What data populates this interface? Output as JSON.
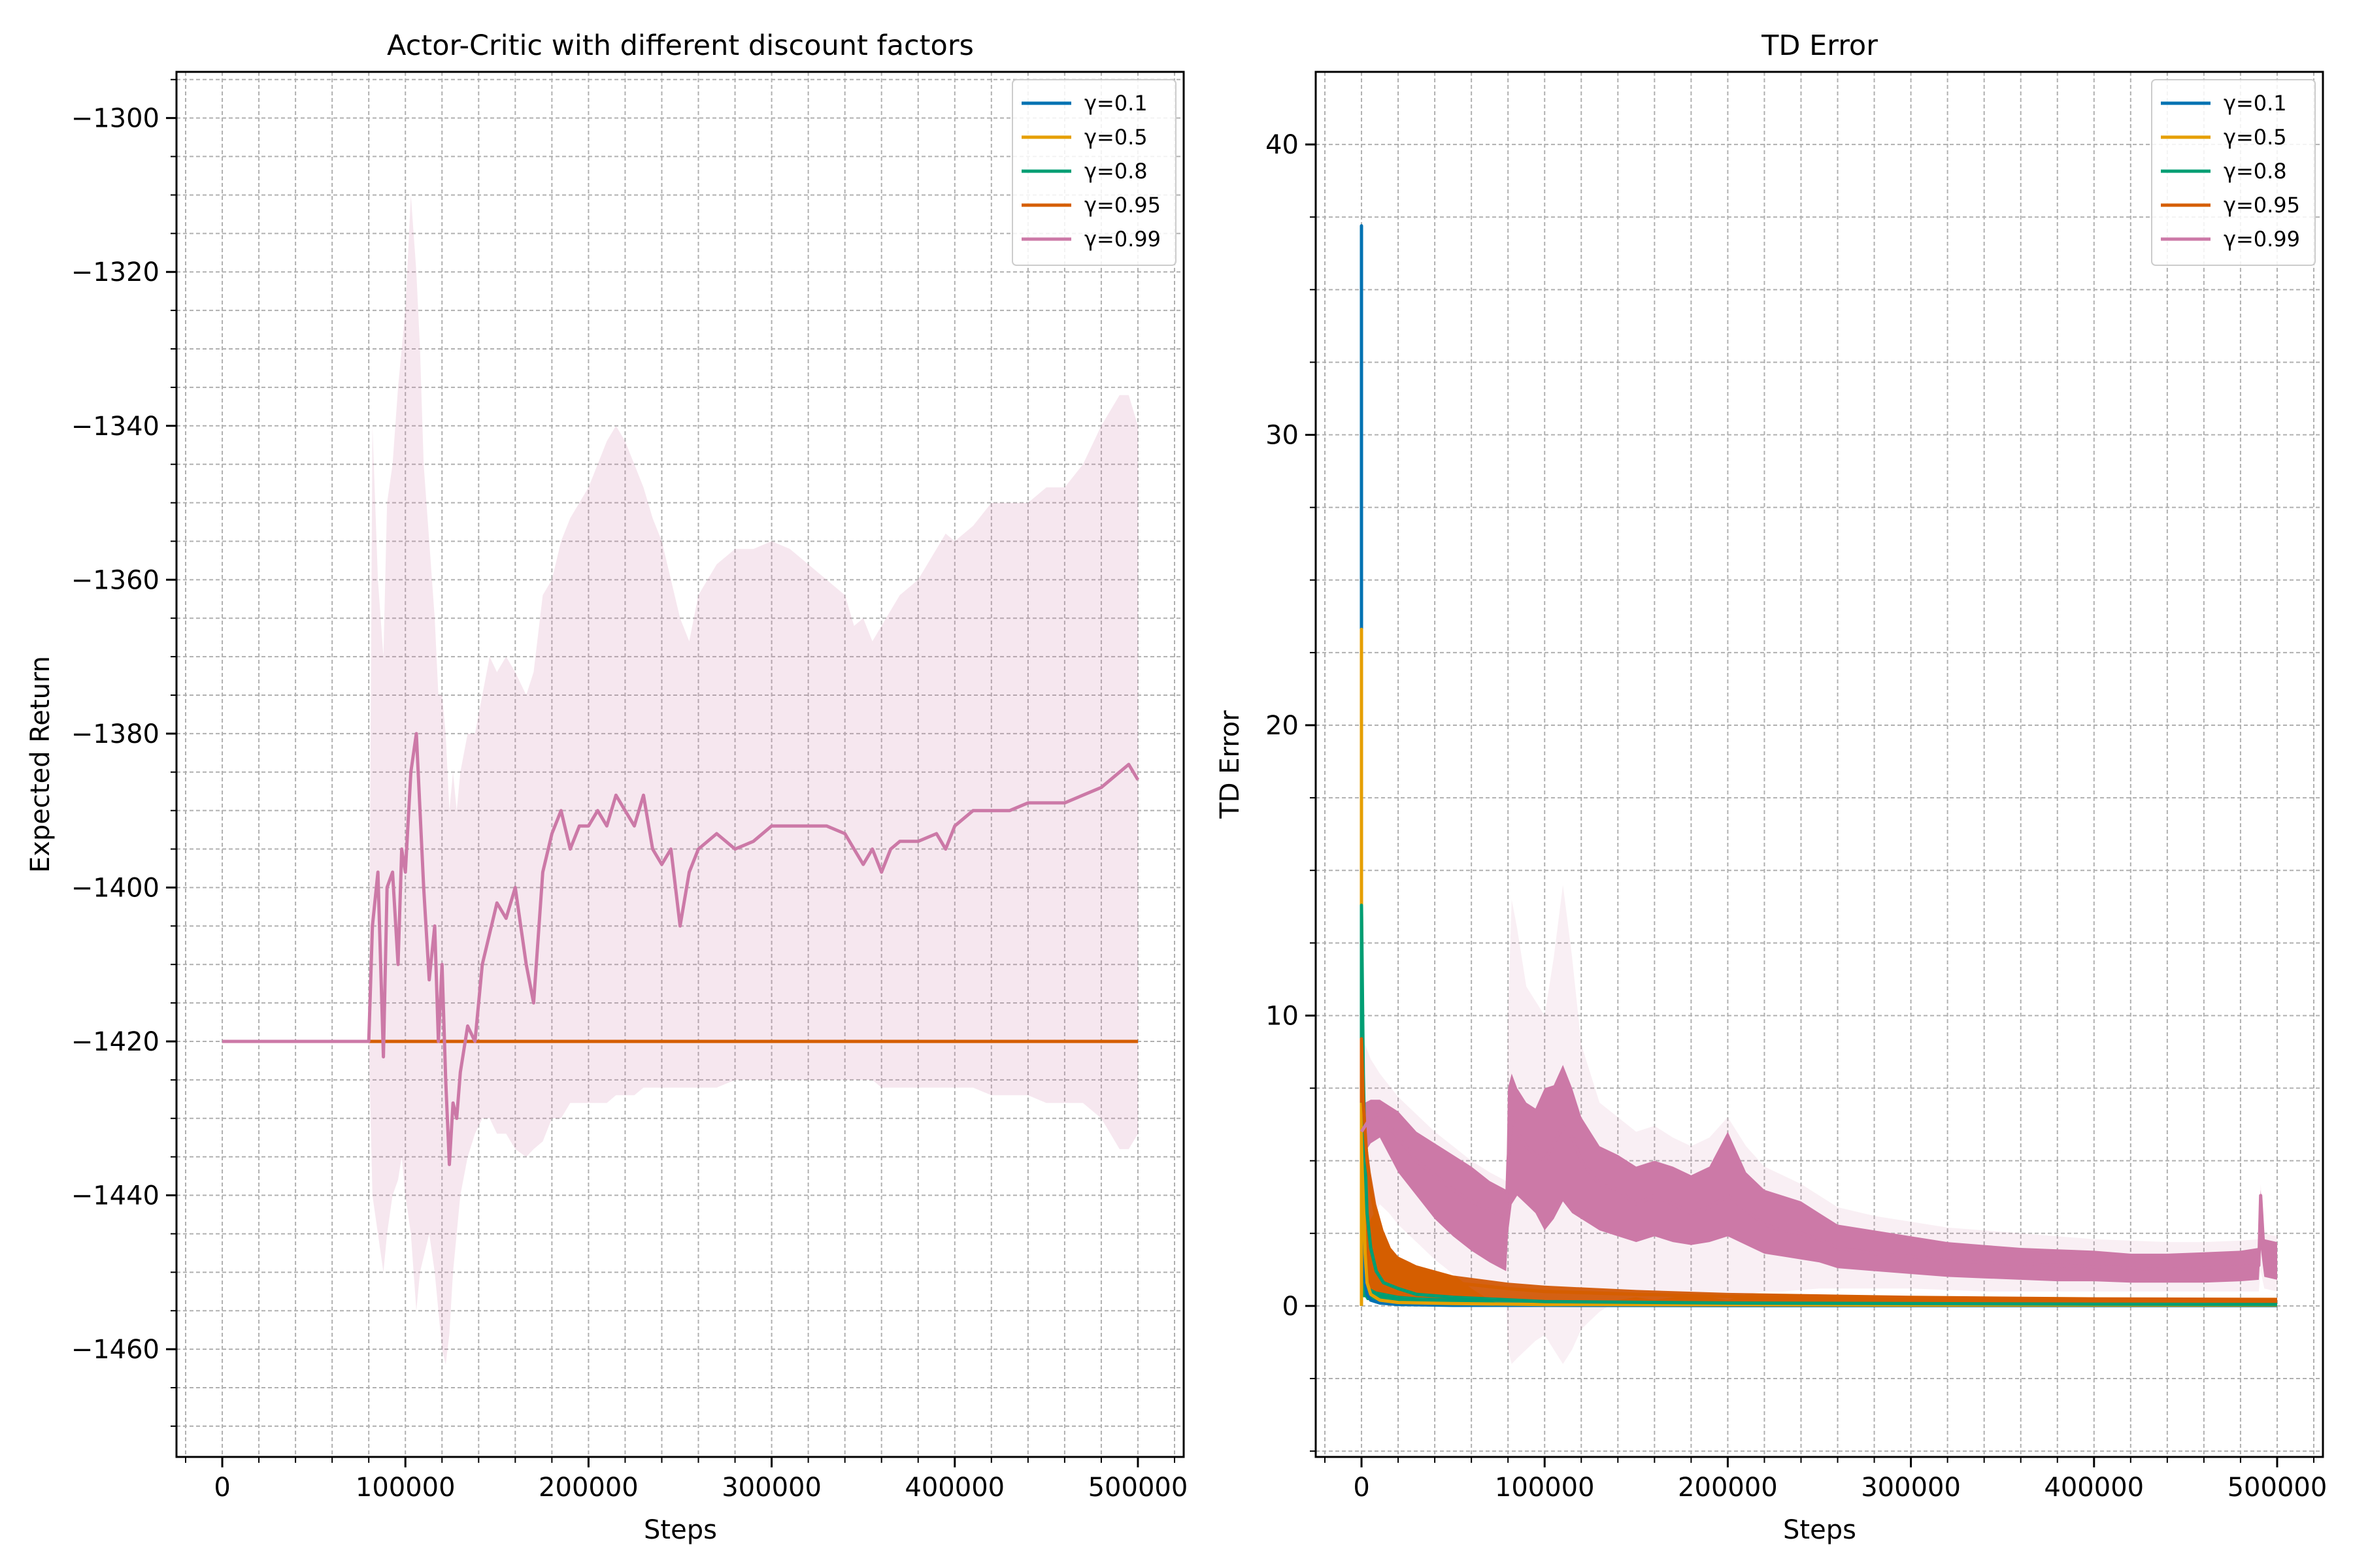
{
  "colors": {
    "g01": "#0072b2",
    "g05": "#e69f00",
    "g08": "#009e73",
    "g095": "#d55e00",
    "g099": "#cc79a7",
    "grid": "#b0b0b0"
  },
  "chart_data": [
    {
      "type": "line",
      "title": "Actor-Critic with different discount factors",
      "xlabel": "Steps",
      "ylabel": "Expected Return",
      "xlim": [
        -25000,
        525000
      ],
      "ylim": [
        -1474,
        -1294
      ],
      "xticks": [
        0,
        100000,
        200000,
        300000,
        400000,
        500000
      ],
      "xtick_labels": [
        "0",
        "100000",
        "200000",
        "300000",
        "400000",
        "500000"
      ],
      "yticks": [
        -1460,
        -1440,
        -1420,
        -1400,
        -1380,
        -1360,
        -1340,
        -1320,
        -1300
      ],
      "ytick_labels": [
        "−1460",
        "−1440",
        "−1420",
        "−1400",
        "−1380",
        "−1360",
        "−1340",
        "−1320",
        "−1300"
      ],
      "grid": true,
      "legend_position": "top-right",
      "series": [
        {
          "name": "γ=0.1",
          "color_key": "g01",
          "x": [
            0,
            500000
          ],
          "y": [
            -1420,
            -1420
          ]
        },
        {
          "name": "γ=0.5",
          "color_key": "g05",
          "x": [
            0,
            500000
          ],
          "y": [
            -1420,
            -1420
          ]
        },
        {
          "name": "γ=0.8",
          "color_key": "g08",
          "x": [
            0,
            500000
          ],
          "y": [
            -1420,
            -1420
          ]
        },
        {
          "name": "γ=0.95",
          "color_key": "g095",
          "x": [
            0,
            500000
          ],
          "y": [
            -1420,
            -1420
          ]
        },
        {
          "name": "γ=0.99",
          "color_key": "g099",
          "x": [
            0,
            80000,
            82000,
            85000,
            88000,
            90000,
            93000,
            96000,
            98000,
            100000,
            103000,
            106000,
            108000,
            110000,
            113000,
            116000,
            118000,
            120000,
            122000,
            124000,
            126000,
            128000,
            130000,
            134000,
            138000,
            142000,
            146000,
            150000,
            155000,
            160000,
            166000,
            170000,
            175000,
            180000,
            185000,
            190000,
            195000,
            200000,
            205000,
            210000,
            215000,
            220000,
            225000,
            230000,
            235000,
            240000,
            245000,
            250000,
            255000,
            260000,
            270000,
            280000,
            290000,
            300000,
            310000,
            320000,
            330000,
            340000,
            345000,
            350000,
            355000,
            360000,
            365000,
            370000,
            380000,
            390000,
            395000,
            400000,
            410000,
            420000,
            430000,
            440000,
            450000,
            460000,
            470000,
            480000,
            485000,
            490000,
            495000,
            500000
          ],
          "y": [
            -1420,
            -1420,
            -1405,
            -1398,
            -1422,
            -1400,
            -1398,
            -1410,
            -1395,
            -1398,
            -1385,
            -1380,
            -1390,
            -1400,
            -1412,
            -1405,
            -1420,
            -1410,
            -1425,
            -1436,
            -1428,
            -1430,
            -1424,
            -1418,
            -1420,
            -1410,
            -1406,
            -1402,
            -1404,
            -1400,
            -1410,
            -1415,
            -1398,
            -1393,
            -1390,
            -1395,
            -1392,
            -1392,
            -1390,
            -1392,
            -1388,
            -1390,
            -1392,
            -1388,
            -1395,
            -1397,
            -1395,
            -1405,
            -1398,
            -1395,
            -1393,
            -1395,
            -1394,
            -1392,
            -1392,
            -1392,
            -1392,
            -1393,
            -1395,
            -1397,
            -1395,
            -1398,
            -1395,
            -1394,
            -1394,
            -1393,
            -1395,
            -1392,
            -1390,
            -1390,
            -1390,
            -1389,
            -1389,
            -1389,
            -1388,
            -1387,
            -1386,
            -1385,
            -1384,
            -1386
          ],
          "band_upper": [
            -1420,
            -1420,
            -1340,
            -1360,
            -1370,
            -1350,
            -1345,
            -1335,
            -1330,
            -1325,
            -1310,
            -1320,
            -1330,
            -1345,
            -1355,
            -1365,
            -1375,
            -1375,
            -1380,
            -1390,
            -1385,
            -1390,
            -1385,
            -1380,
            -1380,
            -1375,
            -1370,
            -1372,
            -1370,
            -1372,
            -1375,
            -1372,
            -1362,
            -1360,
            -1355,
            -1352,
            -1350,
            -1348,
            -1345,
            -1342,
            -1340,
            -1342,
            -1345,
            -1348,
            -1352,
            -1355,
            -1360,
            -1365,
            -1368,
            -1362,
            -1358,
            -1356,
            -1356,
            -1355,
            -1356,
            -1358,
            -1360,
            -1362,
            -1366,
            -1365,
            -1368,
            -1366,
            -1364,
            -1362,
            -1360,
            -1356,
            -1354,
            -1355,
            -1353,
            -1350,
            -1350,
            -1350,
            -1348,
            -1348,
            -1345,
            -1340,
            -1338,
            -1336,
            -1336,
            -1340
          ],
          "band_lower": [
            -1420,
            -1420,
            -1440,
            -1445,
            -1450,
            -1445,
            -1440,
            -1438,
            -1435,
            -1440,
            -1445,
            -1455,
            -1450,
            -1448,
            -1445,
            -1450,
            -1455,
            -1460,
            -1462,
            -1458,
            -1450,
            -1445,
            -1440,
            -1435,
            -1432,
            -1430,
            -1430,
            -1432,
            -1432,
            -1434,
            -1435,
            -1434,
            -1433,
            -1430,
            -1430,
            -1428,
            -1428,
            -1428,
            -1428,
            -1428,
            -1427,
            -1427,
            -1427,
            -1426,
            -1426,
            -1426,
            -1426,
            -1426,
            -1426,
            -1426,
            -1426,
            -1425,
            -1425,
            -1425,
            -1425,
            -1425,
            -1425,
            -1425,
            -1425,
            -1425,
            -1425,
            -1426,
            -1426,
            -1426,
            -1426,
            -1426,
            -1426,
            -1426,
            -1426,
            -1427,
            -1427,
            -1427,
            -1428,
            -1428,
            -1428,
            -1430,
            -1432,
            -1434,
            -1434,
            -1432
          ]
        }
      ]
    },
    {
      "type": "line",
      "title": "TD Error",
      "xlabel": "Steps",
      "ylabel": "TD Error",
      "xlim": [
        -25000,
        525000
      ],
      "ylim": [
        -5.2,
        42.5
      ],
      "xticks": [
        0,
        100000,
        200000,
        300000,
        400000,
        500000
      ],
      "xtick_labels": [
        "0",
        "100000",
        "200000",
        "300000",
        "400000",
        "500000"
      ],
      "yticks": [
        0,
        10,
        20,
        30,
        40
      ],
      "ytick_labels": [
        "0",
        "10",
        "20",
        "30",
        "40"
      ],
      "grid": true,
      "legend_position": "top-right",
      "series": [
        {
          "name": "γ=0.1",
          "color_key": "g01",
          "x": [
            0,
            0,
            0,
            1000,
            2000,
            3000,
            5000,
            10000,
            20000,
            50000,
            100000,
            200000,
            300000,
            400000,
            500000
          ],
          "y": [
            0,
            37.2,
            3,
            1.5,
            0.8,
            0.4,
            0.2,
            0.1,
            0.05,
            0.02,
            0.02,
            0.01,
            0.01,
            0.01,
            0.01
          ]
        },
        {
          "name": "γ=0.5",
          "color_key": "g05",
          "x": [
            0,
            0,
            0,
            1000,
            2000,
            3000,
            5000,
            10000,
            20000,
            50000,
            100000,
            200000,
            300000,
            400000,
            500000
          ],
          "y": [
            0,
            23.3,
            13.8,
            4,
            1.8,
            0.8,
            0.4,
            0.2,
            0.12,
            0.08,
            0.05,
            0.04,
            0.03,
            0.03,
            0.03
          ]
        },
        {
          "name": "γ=0.8",
          "color_key": "g08",
          "x": [
            0,
            0,
            1000,
            2000,
            3000,
            5000,
            8000,
            12000,
            20000,
            30000,
            50000,
            100000,
            200000,
            300000,
            400000,
            500000
          ],
          "y": [
            7,
            13.8,
            8,
            5,
            3.2,
            2,
            1.2,
            0.8,
            0.6,
            0.4,
            0.3,
            0.15,
            0.1,
            0.08,
            0.06,
            0.05
          ],
          "band_upper": [
            7,
            13.8,
            8,
            5,
            3.5,
            2.3,
            1.4,
            1,
            0.75,
            0.55,
            0.4,
            0.2,
            0.14,
            0.1,
            0.08,
            0.07
          ],
          "band_lower": [
            0.5,
            0.5,
            0.3,
            0.3,
            0.2,
            0.2,
            0.15,
            0.1,
            0.05,
            0.05,
            0.02,
            0.02,
            0.02,
            0.02,
            0.02,
            0.02
          ]
        },
        {
          "name": "γ=0.95",
          "color_key": "g095",
          "x": [
            0,
            0,
            1000,
            2000,
            3000,
            5000,
            8000,
            12000,
            16000,
            20000,
            30000,
            50000,
            80000,
            100000,
            150000,
            200000,
            300000,
            400000,
            500000
          ],
          "y": [
            7,
            9.2,
            7,
            6,
            5,
            4,
            3,
            2.2,
            1.7,
            1.4,
            1.1,
            0.8,
            0.6,
            0.5,
            0.4,
            0.33,
            0.25,
            0.2,
            0.17
          ],
          "band_upper": [
            7,
            9.2,
            7.5,
            6.5,
            5.6,
            4.6,
            3.5,
            2.6,
            2,
            1.7,
            1.4,
            1.05,
            0.8,
            0.7,
            0.55,
            0.45,
            0.35,
            0.3,
            0.28
          ],
          "band_lower": [
            1.5,
            1.5,
            1.2,
            1,
            0.8,
            0.6,
            0.5,
            0.45,
            0.4,
            0.35,
            0.3,
            0.25,
            0.2,
            0.18,
            0.15,
            0.12,
            0.1,
            0.08,
            0.07
          ]
        },
        {
          "name": "γ=0.99",
          "color_key": "g099",
          "x": [
            0,
            2000,
            5000,
            10000,
            15000,
            20000,
            30000,
            40000,
            50000,
            60000,
            70000,
            79000,
            80000,
            82000,
            85000,
            90000,
            95000,
            100000,
            105000,
            110000,
            115000,
            120000,
            125000,
            130000,
            140000,
            150000,
            160000,
            170000,
            180000,
            190000,
            200000,
            210000,
            220000,
            230000,
            240000,
            250000,
            260000,
            280000,
            300000,
            320000,
            340000,
            360000,
            380000,
            400000,
            420000,
            440000,
            460000,
            480000,
            490000,
            491000,
            493000,
            500000
          ],
          "y": [
            6,
            6.2,
            6.5,
            6.6,
            6.2,
            5.8,
            5,
            4.5,
            4,
            3.6,
            3.3,
            3,
            5,
            6.5,
            6,
            5.5,
            5.2,
            5,
            5.6,
            6.2,
            5.8,
            5,
            4.6,
            4.2,
            4,
            3.5,
            3.8,
            3.5,
            3.2,
            3.4,
            3.8,
            3.3,
            2.8,
            2.6,
            2.5,
            2.3,
            2,
            1.8,
            1.7,
            1.55,
            1.5,
            1.45,
            1.4,
            1.35,
            1.3,
            1.25,
            1.3,
            1.35,
            1.4,
            3.8,
            1.6,
            1.5
          ],
          "band_upper": [
            7,
            7,
            7.1,
            7.1,
            6.9,
            6.7,
            6,
            5.6,
            5.2,
            4.8,
            4.3,
            4,
            7.5,
            8,
            7.5,
            7,
            6.8,
            7.5,
            7.6,
            8.3,
            7.5,
            6.5,
            6,
            5.5,
            5.2,
            4.8,
            5,
            4.8,
            4.5,
            4.8,
            6,
            4.6,
            4,
            3.8,
            3.6,
            3.2,
            2.8,
            2.6,
            2.4,
            2.2,
            2.1,
            2,
            1.95,
            1.9,
            1.8,
            1.8,
            1.85,
            1.9,
            2,
            4,
            2.3,
            2.2
          ],
          "band_lower": [
            5,
            5.3,
            5.6,
            5.8,
            5.2,
            4.6,
            3.8,
            3,
            2.4,
            1.9,
            1.5,
            1.2,
            2.5,
            3.5,
            3.8,
            3.5,
            3.2,
            2.6,
            3,
            3.6,
            3.2,
            3,
            2.8,
            2.6,
            2.4,
            2.2,
            2.4,
            2.2,
            2.1,
            2.2,
            2.4,
            2.1,
            1.8,
            1.7,
            1.6,
            1.5,
            1.3,
            1.2,
            1.1,
            1,
            0.95,
            0.9,
            0.85,
            0.85,
            0.8,
            0.8,
            0.8,
            0.85,
            0.9,
            2,
            1,
            0.9
          ],
          "faint_upper": [
            8.5,
            9,
            8.5,
            8,
            7.6,
            7.2,
            6.6,
            6,
            5.5,
            5,
            4.6,
            4.3,
            10,
            14,
            13,
            11,
            10.5,
            10,
            12,
            14.5,
            12,
            9,
            8,
            7,
            6.5,
            6,
            6.2,
            5.8,
            5.5,
            5.8,
            6.5,
            5.5,
            4.8,
            4.5,
            4.2,
            3.8,
            3.4,
            3.1,
            2.9,
            2.7,
            2.6,
            2.5,
            2.4,
            2.3,
            2.25,
            2.2,
            2.2,
            2.25,
            2.3,
            4.2,
            2.5,
            2.4
          ],
          "faint_lower": [
            2,
            2.5,
            3,
            3.5,
            3.2,
            2.8,
            2.2,
            1.6,
            1.1,
            0.6,
            0.2,
            0,
            -1.5,
            -2,
            -1.8,
            -1.5,
            -1.2,
            -1,
            -1.5,
            -2,
            -1.5,
            -0.8,
            -0.5,
            -0.2,
            0.2,
            0.3,
            0.2,
            0.3,
            0.4,
            0.3,
            0.2,
            0.4,
            0.5,
            0.5,
            0.55,
            0.6,
            0.6,
            0.6,
            0.6,
            0.55,
            0.5,
            0.5,
            0.5,
            0.5,
            0.5,
            0.5,
            0.5,
            0.5,
            0.5,
            1.2,
            0.6,
            0.5
          ]
        }
      ]
    }
  ]
}
